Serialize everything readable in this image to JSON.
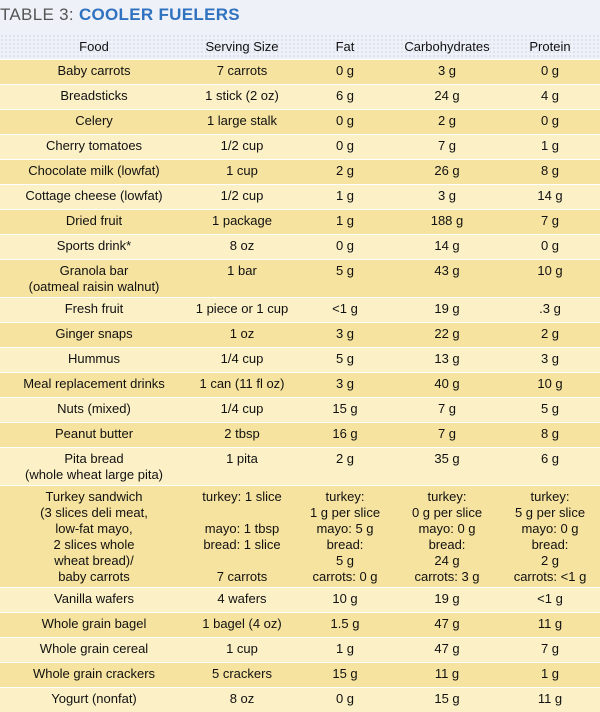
{
  "title": {
    "prefix": "TABLE 3:",
    "main": "COOLER FUELERS"
  },
  "columns": [
    "Food",
    "Serving Size",
    "Fat",
    "Carbohydrates",
    "Protein"
  ],
  "rows": [
    [
      "Baby carrots",
      "7 carrots",
      "0 g",
      "3 g",
      "0 g"
    ],
    [
      "Breadsticks",
      "1 stick (2 oz)",
      "6 g",
      "24 g",
      "4 g"
    ],
    [
      "Celery",
      "1 large stalk",
      "0 g",
      "2 g",
      "0 g"
    ],
    [
      "Cherry tomatoes",
      "1/2 cup",
      "0 g",
      "7 g",
      "1 g"
    ],
    [
      "Chocolate milk (lowfat)",
      "1 cup",
      "2 g",
      "26 g",
      "8 g"
    ],
    [
      "Cottage cheese (lowfat)",
      "1/2 cup",
      "1 g",
      "3 g",
      "14 g"
    ],
    [
      "Dried fruit",
      "1 package",
      "1 g",
      "188 g",
      "7 g"
    ],
    [
      "Sports drink*",
      "8 oz",
      "0 g",
      "14 g",
      "0 g"
    ],
    [
      "Granola bar\n(oatmeal raisin walnut)",
      "1 bar",
      "5 g",
      "43 g",
      "10 g"
    ],
    [
      "Fresh fruit",
      "1 piece or 1 cup",
      "<1 g",
      "19 g",
      ".3 g"
    ],
    [
      "Ginger snaps",
      "1 oz",
      "3 g",
      "22 g",
      "2 g"
    ],
    [
      "Hummus",
      "1/4 cup",
      "5 g",
      "13 g",
      "3 g"
    ],
    [
      "Meal replacement drinks",
      "1 can (11 fl oz)",
      "3 g",
      "40 g",
      "10 g"
    ],
    [
      "Nuts (mixed)",
      "1/4 cup",
      "15 g",
      "7 g",
      "5 g"
    ],
    [
      "Peanut butter",
      "2 tbsp",
      "16 g",
      "7 g",
      "8 g"
    ],
    [
      "Pita bread\n(whole wheat large pita)",
      "1 pita",
      "2 g",
      "35 g",
      "6 g"
    ],
    [
      "Turkey sandwich\n(3 slices deli meat,\nlow-fat mayo,\n2 slices whole\nwheat bread)/\nbaby carrots",
      "turkey: 1 slice\n\nmayo: 1 tbsp\nbread: 1 slice\n\n7 carrots",
      "turkey:\n1 g per slice\nmayo: 5 g\nbread:\n5 g\ncarrots: 0 g",
      "turkey:\n0 g per slice\nmayo: 0 g\nbread:\n24 g\ncarrots: 3 g",
      "turkey:\n5 g per slice\nmayo: 0 g\nbread:\n2 g\ncarrots: <1 g"
    ],
    [
      "Vanilla wafers",
      "4 wafers",
      "10 g",
      "19 g",
      "<1 g"
    ],
    [
      "Whole grain bagel",
      "1 bagel (4 oz)",
      "1.5 g",
      "47 g",
      "11 g"
    ],
    [
      "Whole grain cereal",
      "1 cup",
      "1 g",
      "47 g",
      "7 g"
    ],
    [
      "Whole grain crackers",
      "5 crackers",
      "15 g",
      "11 g",
      "1 g"
    ],
    [
      "Yogurt (nonfat)",
      "8 oz",
      "0 g",
      "15 g",
      "11 g"
    ]
  ]
}
